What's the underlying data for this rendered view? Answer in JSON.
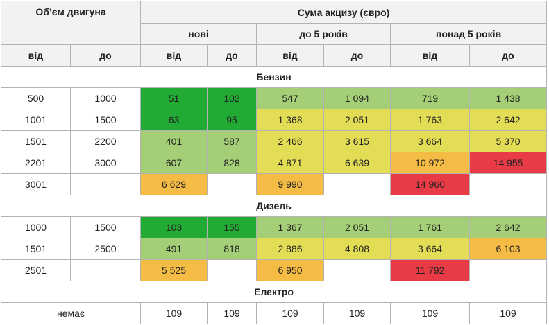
{
  "header": {
    "engine_volume": "Об’єм двигуна",
    "excise_sum": "Сума акцизу (євро)",
    "groups": [
      "нові",
      "до 5 років",
      "понад 5 років"
    ],
    "from": "від",
    "to": "до"
  },
  "colors": {
    "g1": "#22ab34",
    "g2": "#a5cf77",
    "y": "#e3dd55",
    "o": "#f4bb45",
    "r": "#e83b45"
  },
  "sections": [
    {
      "title": "Бензин",
      "rows": [
        {
          "from": "500",
          "to": "1000",
          "cells": [
            "51",
            "102",
            "547",
            "1 094",
            "719",
            "1 438"
          ],
          "classes": [
            "g1",
            "g1",
            "g2",
            "g2",
            "g2",
            "g2"
          ]
        },
        {
          "from": "1001",
          "to": "1500",
          "cells": [
            "63",
            "95",
            "1 368",
            "2 051",
            "1 763",
            "2 642"
          ],
          "classes": [
            "g1",
            "g1",
            "y",
            "y",
            "y",
            "y"
          ]
        },
        {
          "from": "1501",
          "to": "2200",
          "cells": [
            "401",
            "587",
            "2 466",
            "3 615",
            "3 664",
            "5 370"
          ],
          "classes": [
            "g2",
            "g2",
            "y",
            "y",
            "y",
            "y"
          ]
        },
        {
          "from": "2201",
          "to": "3000",
          "cells": [
            "607",
            "828",
            "4 871",
            "6 639",
            "10 972",
            "14 955"
          ],
          "classes": [
            "g2",
            "g2",
            "y",
            "y",
            "o",
            "r"
          ]
        },
        {
          "from": "3001",
          "to": "",
          "cells": [
            "6 629",
            "",
            "9 990",
            "",
            "14 960",
            ""
          ],
          "classes": [
            "o",
            "w",
            "o",
            "w",
            "r",
            "w"
          ]
        }
      ]
    },
    {
      "title": "Дизель",
      "rows": [
        {
          "from": "1000",
          "to": "1500",
          "cells": [
            "103",
            "155",
            "1 367",
            "2 051",
            "1 761",
            "2 642"
          ],
          "classes": [
            "g1",
            "g1",
            "g2",
            "g2",
            "g2",
            "g2"
          ]
        },
        {
          "from": "1501",
          "to": "2500",
          "cells": [
            "491",
            "818",
            "2 886",
            "4 808",
            "3 664",
            "6 103"
          ],
          "classes": [
            "g2",
            "g2",
            "y",
            "y",
            "y",
            "o"
          ]
        },
        {
          "from": "2501",
          "to": "",
          "cells": [
            "5 525",
            "",
            "6 950",
            "",
            "11 792",
            ""
          ],
          "classes": [
            "o",
            "w",
            "o",
            "w",
            "r",
            "w"
          ]
        }
      ]
    }
  ],
  "electric": {
    "title": "Електро",
    "label": "немає",
    "cells": [
      "109",
      "109",
      "109",
      "109",
      "109",
      "109"
    ]
  }
}
